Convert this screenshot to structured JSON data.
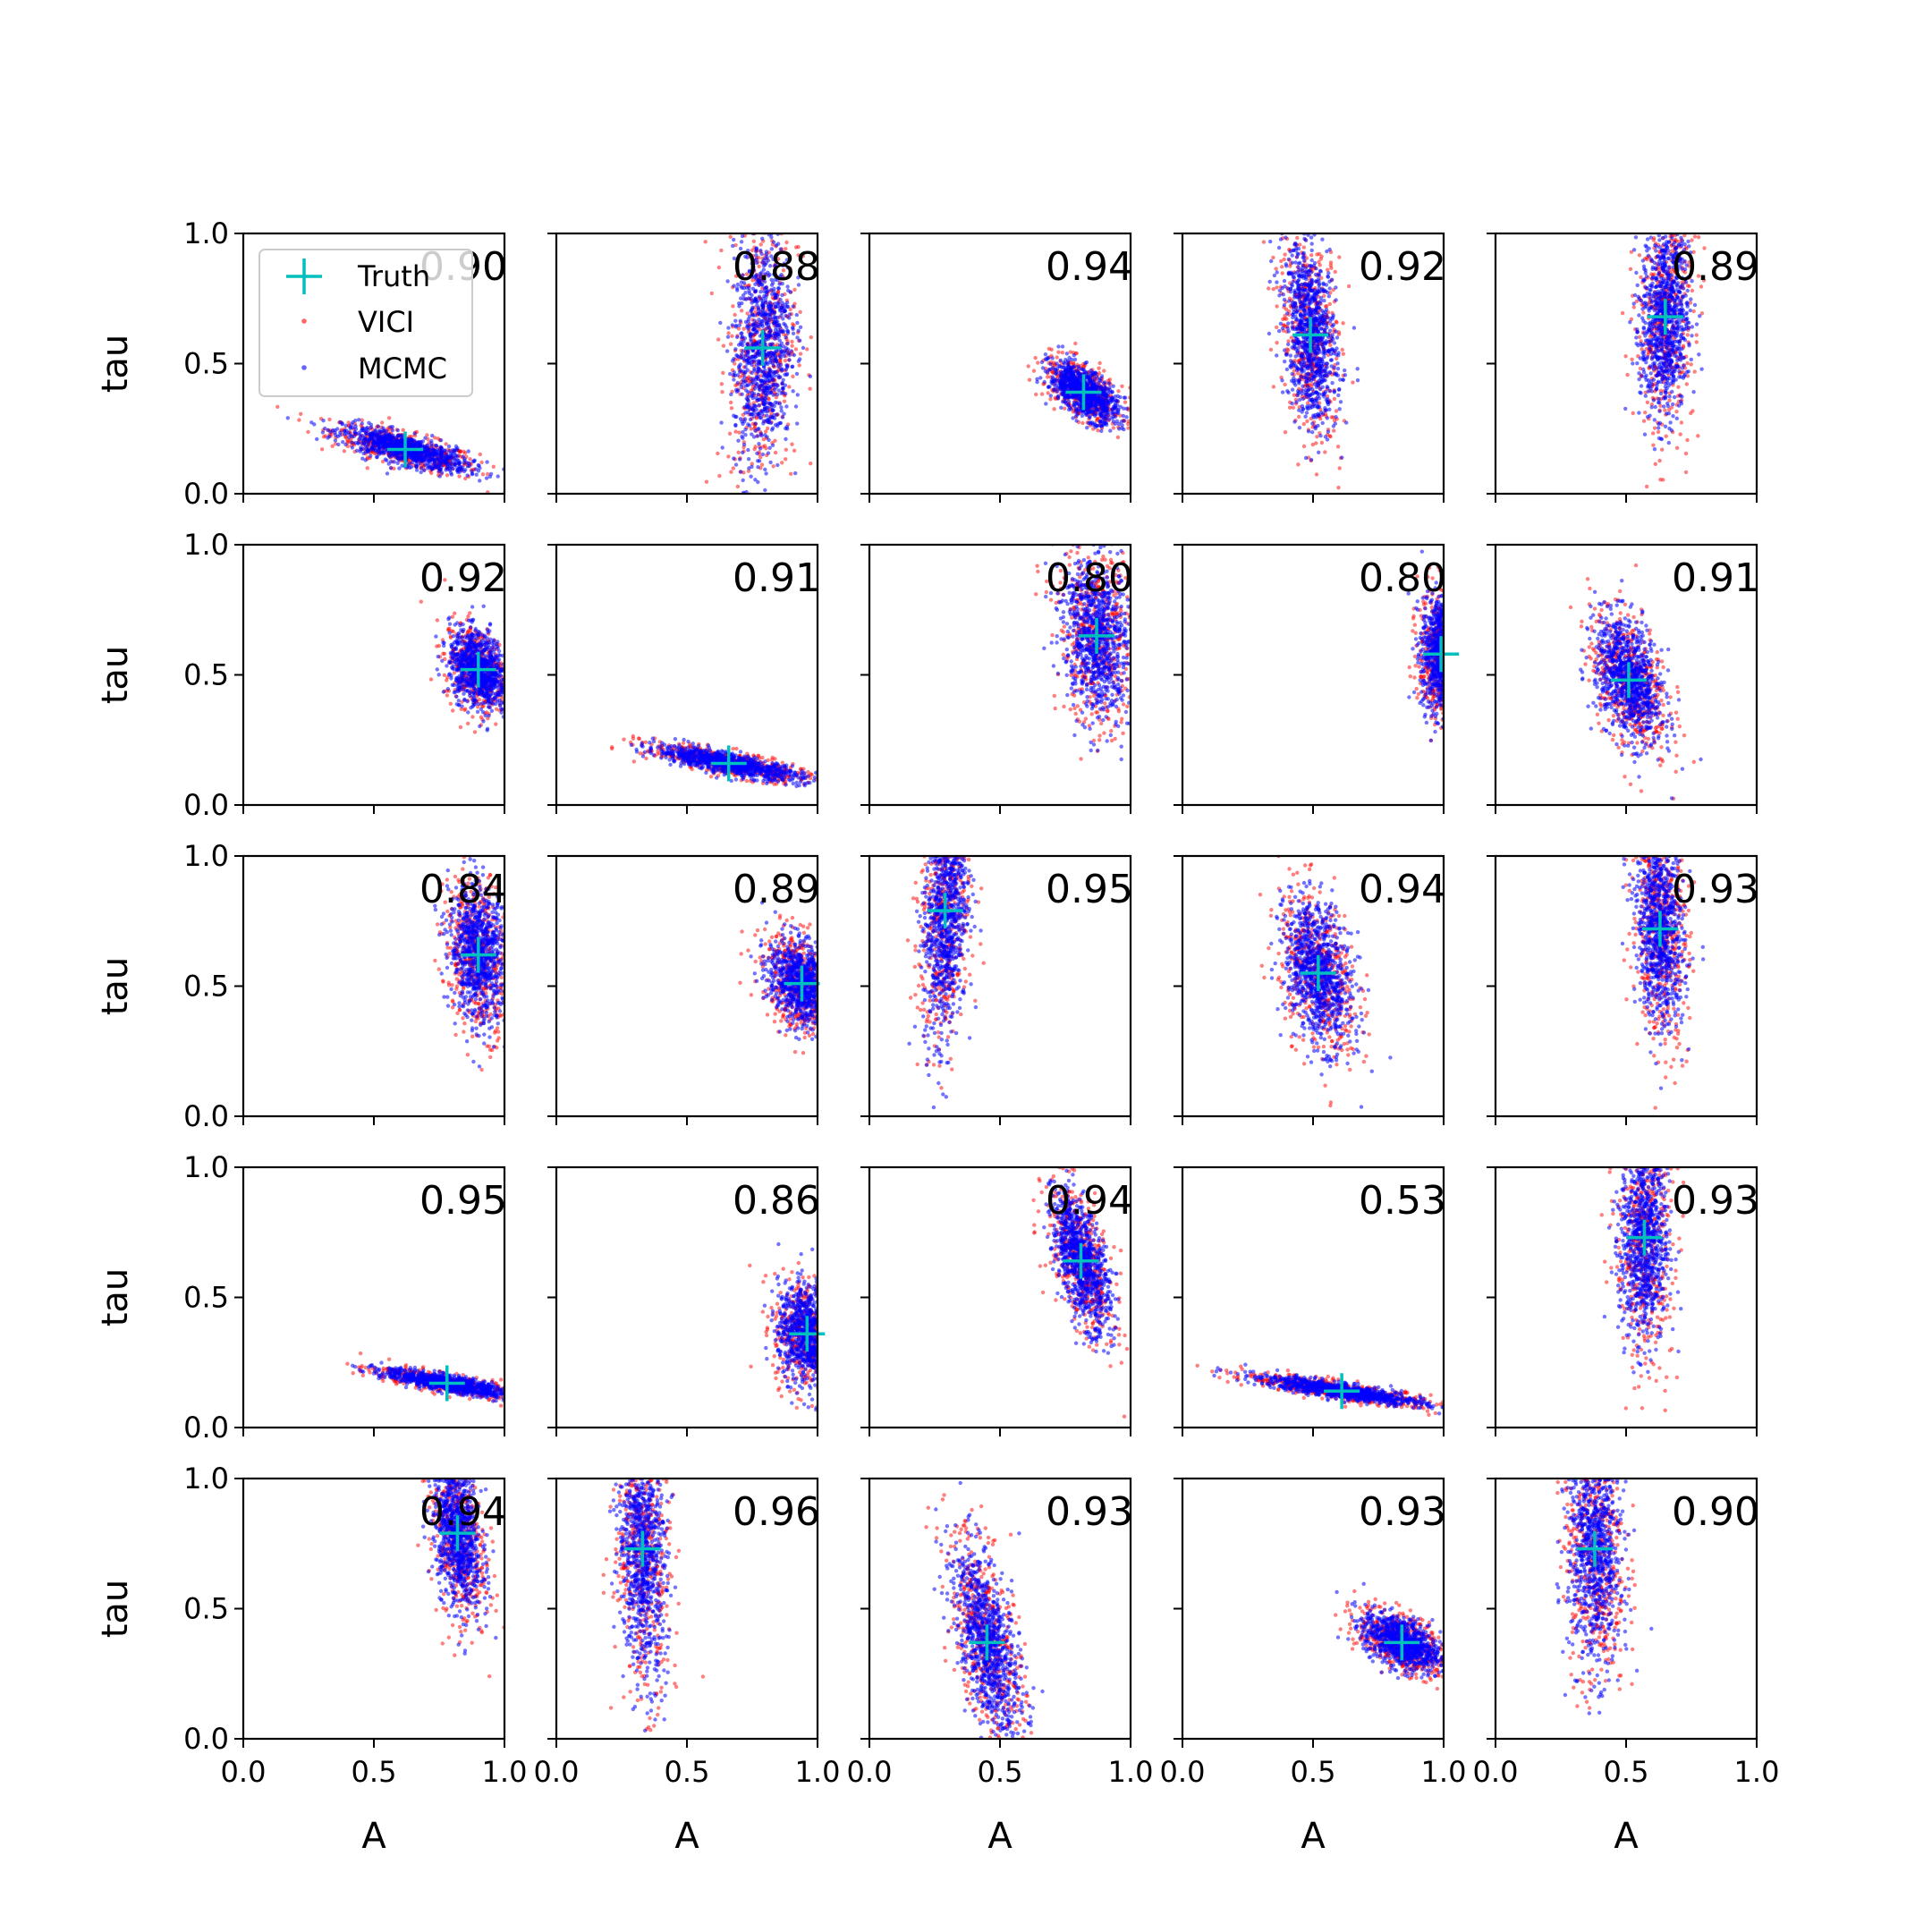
{
  "chart_data": {
    "type": "scatter",
    "layout": {
      "rows": 5,
      "cols": 5
    },
    "xlabel": "A",
    "ylabel": "tau",
    "xlim": [
      0,
      1
    ],
    "ylim": [
      0,
      1
    ],
    "xticks": [
      "0.0",
      "0.5",
      "1.0"
    ],
    "yticks": [
      "0.0",
      "0.5",
      "1.0"
    ],
    "colors": {
      "VICI": "#ff0000",
      "MCMC": "#0000ff",
      "Truth": "#00bfbf"
    },
    "legend": {
      "position": "upper-left of first panel",
      "entries": [
        "Truth",
        "VICI",
        "MCMC"
      ]
    },
    "panels": [
      {
        "label": "0.90",
        "truth": [
          0.62,
          0.17
        ],
        "spread": [
          0.13,
          0.045
        ],
        "rho": -0.75
      },
      {
        "label": "0.88",
        "truth": [
          0.79,
          0.56
        ],
        "spread": [
          0.06,
          0.24
        ],
        "rho": 0.15
      },
      {
        "label": "0.94",
        "truth": [
          0.82,
          0.39
        ],
        "spread": [
          0.07,
          0.06
        ],
        "rho": -0.6
      },
      {
        "label": "0.92",
        "truth": [
          0.49,
          0.61
        ],
        "spread": [
          0.055,
          0.19
        ],
        "rho": -0.3
      },
      {
        "label": "0.89",
        "truth": [
          0.65,
          0.68
        ],
        "spread": [
          0.05,
          0.21
        ],
        "rho": 0.1
      },
      {
        "label": "0.92",
        "truth": [
          0.9,
          0.52
        ],
        "spread": [
          0.06,
          0.08
        ],
        "rho": -0.3
      },
      {
        "label": "0.91",
        "truth": [
          0.66,
          0.16
        ],
        "spread": [
          0.15,
          0.035
        ],
        "rho": -0.8
      },
      {
        "label": "0.80",
        "truth": [
          0.87,
          0.65
        ],
        "spread": [
          0.07,
          0.17
        ],
        "rho": -0.2
      },
      {
        "label": "0.80",
        "truth": [
          0.99,
          0.58
        ],
        "spread": [
          0.04,
          0.12
        ],
        "rho": 0.0
      },
      {
        "label": "0.91",
        "truth": [
          0.51,
          0.48
        ],
        "spread": [
          0.07,
          0.13
        ],
        "rho": -0.4
      },
      {
        "label": "0.84",
        "truth": [
          0.9,
          0.62
        ],
        "spread": [
          0.06,
          0.14
        ],
        "rho": -0.2
      },
      {
        "label": "0.89",
        "truth": [
          0.94,
          0.51
        ],
        "spread": [
          0.07,
          0.09
        ],
        "rho": -0.3
      },
      {
        "label": "0.95",
        "truth": [
          0.29,
          0.79
        ],
        "spread": [
          0.045,
          0.26
        ],
        "rho": 0.2
      },
      {
        "label": "0.94",
        "truth": [
          0.52,
          0.55
        ],
        "spread": [
          0.07,
          0.15
        ],
        "rho": -0.35
      },
      {
        "label": "0.93",
        "truth": [
          0.63,
          0.72
        ],
        "spread": [
          0.05,
          0.2
        ],
        "rho": -0.2
      },
      {
        "label": "0.95",
        "truth": [
          0.78,
          0.17
        ],
        "spread": [
          0.13,
          0.028
        ],
        "rho": -0.8
      },
      {
        "label": "0.86",
        "truth": [
          0.96,
          0.36
        ],
        "spread": [
          0.06,
          0.1
        ],
        "rho": -0.1
      },
      {
        "label": "0.94",
        "truth": [
          0.81,
          0.64
        ],
        "spread": [
          0.06,
          0.14
        ],
        "rho": -0.6
      },
      {
        "label": "0.53",
        "truth": [
          0.61,
          0.14
        ],
        "spread": [
          0.17,
          0.03
        ],
        "rho": -0.85
      },
      {
        "label": "0.93",
        "truth": [
          0.57,
          0.73
        ],
        "spread": [
          0.05,
          0.22
        ],
        "rho": 0.0
      },
      {
        "label": "0.94",
        "truth": [
          0.82,
          0.79
        ],
        "spread": [
          0.05,
          0.16
        ],
        "rho": -0.35
      },
      {
        "label": "0.96",
        "truth": [
          0.33,
          0.73
        ],
        "spread": [
          0.05,
          0.26
        ],
        "rho": -0.2
      },
      {
        "label": "0.93",
        "truth": [
          0.45,
          0.37
        ],
        "spread": [
          0.07,
          0.2
        ],
        "rho": -0.6
      },
      {
        "label": "0.93",
        "truth": [
          0.84,
          0.37
        ],
        "spread": [
          0.08,
          0.06
        ],
        "rho": -0.5
      },
      {
        "label": "0.90",
        "truth": [
          0.38,
          0.73
        ],
        "spread": [
          0.055,
          0.25
        ],
        "rho": -0.1
      }
    ]
  }
}
